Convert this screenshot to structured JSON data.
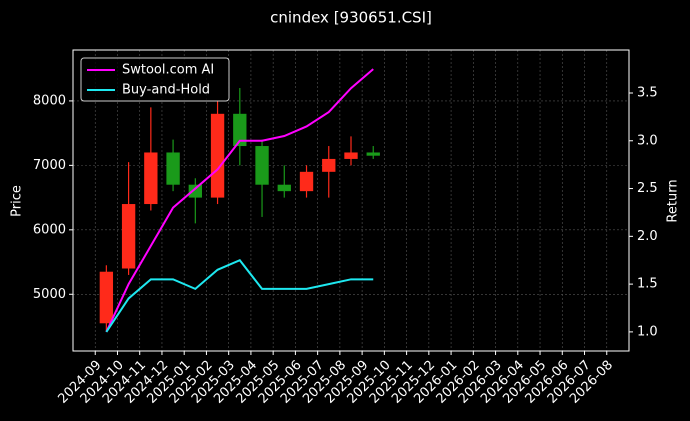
{
  "chart_data": {
    "type": "candlestick",
    "title": "cnindex [930651.CSI]",
    "ylabel": "Price",
    "y2label": "Return",
    "x": [
      "2024-09",
      "2024-10",
      "2024-11",
      "2024-12",
      "2025-01",
      "2025-02",
      "2025-03",
      "2025-04",
      "2025-05",
      "2025-06",
      "2025-07",
      "2025-08",
      "2025-09"
    ],
    "open": [
      4550,
      5400,
      6400,
      7200,
      6700,
      6500,
      7800,
      7300,
      6700,
      6600,
      6900,
      7100,
      7200
    ],
    "high": [
      5450,
      7050,
      7900,
      7400,
      6800,
      8000,
      8200,
      7400,
      7000,
      7000,
      7300,
      7450,
      7300
    ],
    "low": [
      4420,
      5300,
      6300,
      6600,
      6100,
      6400,
      7000,
      6200,
      6500,
      6500,
      6500,
      7000,
      7100
    ],
    "close": [
      5350,
      6400,
      7200,
      6700,
      6500,
      7800,
      7300,
      6700,
      6600,
      6900,
      7100,
      7200,
      7150
    ],
    "up_color": "#ff2a1a",
    "down_color": "#1a9a1a",
    "series": [
      {
        "name": "Swtool.com AI",
        "color": "#ff00ff",
        "axis": "y2",
        "values": [
          1.0,
          1.5,
          1.9,
          2.3,
          2.5,
          2.7,
          3.0,
          3.0,
          3.05,
          3.15,
          3.3,
          3.55,
          3.75
        ]
      },
      {
        "name": "Buy-and-Hold",
        "color": "#1ee8f0",
        "axis": "y2",
        "values": [
          1.0,
          1.35,
          1.55,
          1.55,
          1.45,
          1.65,
          1.75,
          1.45,
          1.45,
          1.45,
          1.5,
          1.55,
          1.55
        ]
      }
    ],
    "xlim": [
      "2024-08",
      "2026-09"
    ],
    "xticks": [
      "2024-09",
      "2024-10",
      "2024-11",
      "2024-12",
      "2025-01",
      "2025-02",
      "2025-03",
      "2025-04",
      "2025-05",
      "2025-06",
      "2025-07",
      "2025-08",
      "2025-09",
      "2025-10",
      "2025-11",
      "2025-12",
      "2026-01",
      "2026-02",
      "2026-03",
      "2026-04",
      "2026-05",
      "2026-06",
      "2026-07",
      "2026-08"
    ],
    "ylim": [
      4120,
      8790
    ],
    "yticks": [
      5000,
      6000,
      7000,
      8000
    ],
    "y2lim": [
      0.8,
      3.95
    ],
    "y2ticks": [
      {
        "value": 1,
        "label": "1.0"
      },
      1.5,
      {
        "value": 2,
        "label": "2.0"
      },
      2.5,
      {
        "value": 3,
        "label": "3.0"
      },
      3.5
    ],
    "grid": true,
    "legend": "upper left"
  }
}
